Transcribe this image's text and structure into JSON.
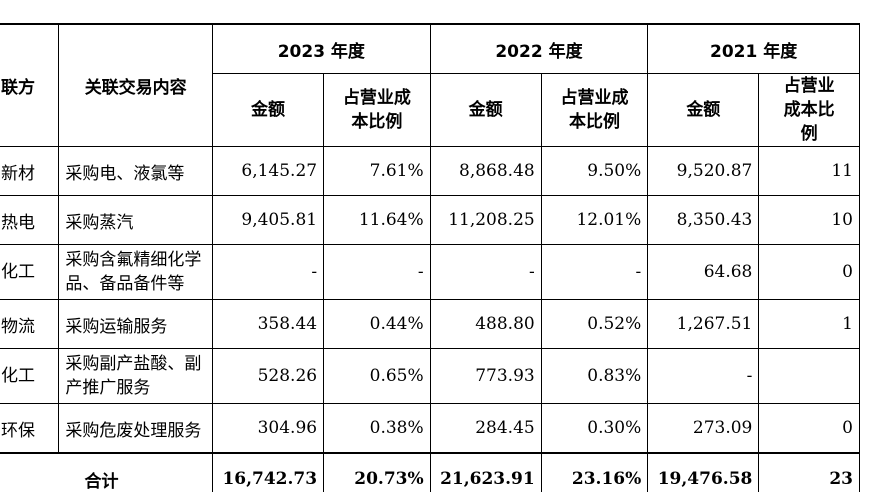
{
  "header": {
    "col_party": "联方",
    "col_content": "关联交易内容",
    "years": [
      "2023 年度",
      "2022 年度",
      "2021 年度"
    ],
    "amount_label": "金额",
    "ratio_label": "占营业成本比例",
    "ratio_label_partial": "占营业"
  },
  "rows": [
    {
      "party": "新材",
      "content": "采购电、液氯等",
      "a2023": "6,145.27",
      "r2023": "7.61%",
      "a2022": "8,868.48",
      "r2022": "9.50%",
      "a2021": "9,520.87",
      "r2021": "11"
    },
    {
      "party": "热电",
      "content": "采购蒸汽",
      "a2023": "9,405.81",
      "r2023": "11.64%",
      "a2022": "11,208.25",
      "r2022": "12.01%",
      "a2021": "8,350.43",
      "r2021": "10"
    },
    {
      "party": "化工",
      "content": "采购含氟精细化学品、备品备件等",
      "a2023": "-",
      "r2023": "-",
      "a2022": "-",
      "r2022": "-",
      "a2021": "64.68",
      "r2021": "0"
    },
    {
      "party": "物流",
      "content": "采购运输服务",
      "a2023": "358.44",
      "r2023": "0.44%",
      "a2022": "488.80",
      "r2022": "0.52%",
      "a2021": "1,267.51",
      "r2021": "1"
    },
    {
      "party": "化工",
      "content": "采购副产盐酸、副产推广服务",
      "a2023": "528.26",
      "r2023": "0.65%",
      "a2022": "773.93",
      "r2022": "0.83%",
      "a2021": "-",
      "r2021": ""
    },
    {
      "party": "环保",
      "content": "采购危废处理服务",
      "a2023": "304.96",
      "r2023": "0.38%",
      "a2022": "284.45",
      "r2022": "0.30%",
      "a2021": "273.09",
      "r2021": "0"
    }
  ],
  "total": {
    "label": "合计",
    "a2023": "16,742.73",
    "r2023": "20.73%",
    "a2022": "21,623.91",
    "r2022": "23.16%",
    "a2021": "19,476.58",
    "r2021": "23"
  }
}
